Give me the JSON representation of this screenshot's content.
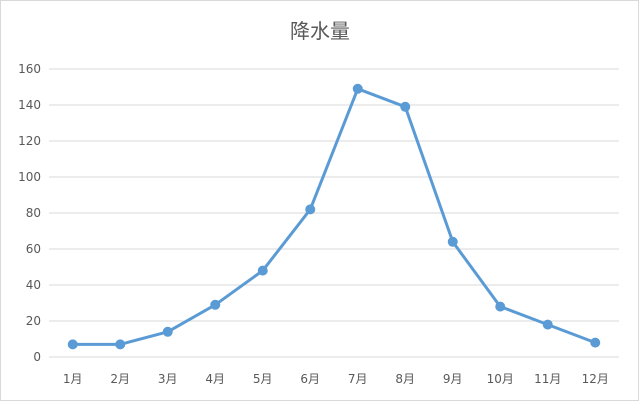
{
  "chart_data": {
    "type": "line",
    "title": "降水量",
    "xlabel": "",
    "ylabel": "",
    "categories": [
      "1月",
      "2月",
      "3月",
      "4月",
      "5月",
      "6月",
      "7月",
      "8月",
      "9月",
      "10月",
      "11月",
      "12月"
    ],
    "series": [
      {
        "values": [
          7,
          7,
          14,
          29,
          48,
          82,
          149,
          139,
          64,
          28,
          18,
          8
        ],
        "color": "#5b9bd5"
      }
    ],
    "ylim": [
      0,
      160
    ],
    "yticks": [
      "0",
      "20",
      "40",
      "60",
      "80",
      "100",
      "120",
      "140",
      "160"
    ],
    "grid": true,
    "legend": "none"
  }
}
